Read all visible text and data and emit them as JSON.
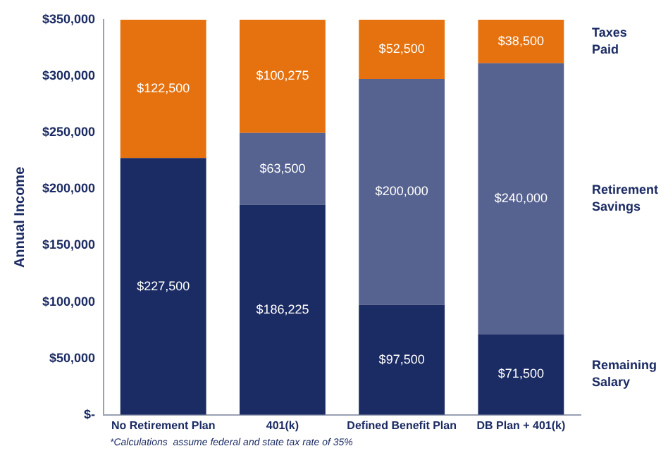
{
  "chart_data": {
    "type": "bar",
    "stacked": true,
    "ylabel": "Annual Income",
    "categories": [
      "No Retirement Plan",
      "401(k)",
      "Defined Benefit Plan",
      "DB Plan + 401(k)"
    ],
    "series": [
      {
        "name": "Remaining Salary",
        "color": "#1b2b63",
        "values": [
          227500,
          186225,
          97500,
          71500
        ],
        "value_labels": [
          "$227,500",
          "$186,225",
          "$97,500",
          "$71,500"
        ]
      },
      {
        "name": "Retirement Savings",
        "color": "#56628f",
        "values": [
          0,
          63500,
          200000,
          240000
        ],
        "value_labels": [
          null,
          "$63,500",
          "$200,000",
          "$240,000"
        ]
      },
      {
        "name": "Taxes Paid",
        "color": "#e6720f",
        "values": [
          122500,
          100275,
          52500,
          38500
        ],
        "value_labels": [
          "$122,500",
          "$100,275",
          "$52,500",
          "$38,500"
        ]
      }
    ],
    "ylim": [
      0,
      350000
    ],
    "yticks": [
      {
        "value": 0,
        "label": "$-"
      },
      {
        "value": 50000,
        "label": "$50,000"
      },
      {
        "value": 100000,
        "label": "$100,000"
      },
      {
        "value": 150000,
        "label": "$150,000"
      },
      {
        "value": 200000,
        "label": "$200,000"
      },
      {
        "value": 250000,
        "label": "$250,000"
      },
      {
        "value": 300000,
        "label": "$300,000"
      },
      {
        "value": 350000,
        "label": "$350,000"
      }
    ],
    "grid": false,
    "legend": false,
    "annotations": [
      "*Calculations  assume federal and state tax rate of 35%"
    ]
  }
}
